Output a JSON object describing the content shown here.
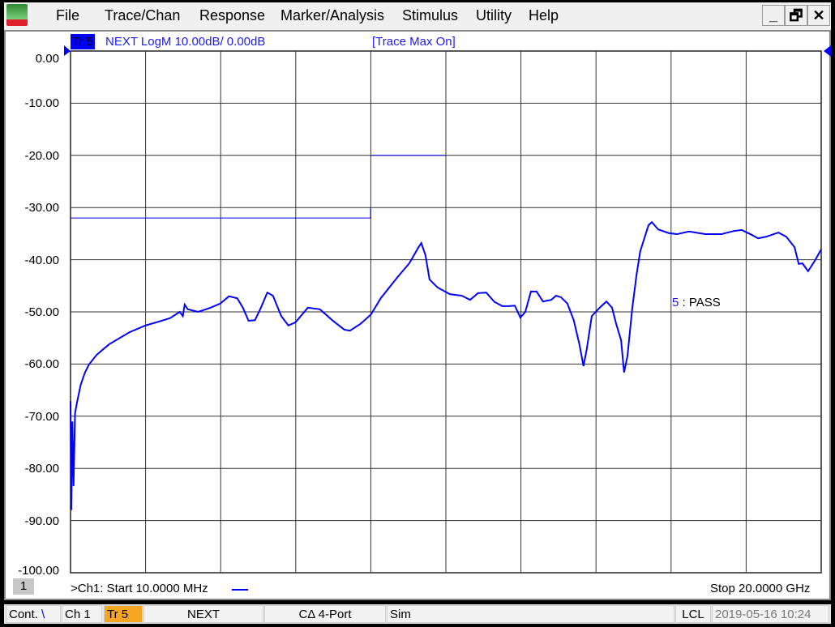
{
  "menu": {
    "items": [
      "File",
      "Trace/Chan",
      "Response",
      "Marker/Analysis",
      "Stimulus",
      "Utility",
      "Help"
    ]
  },
  "window_controls": {
    "minimize": "_",
    "restore": "🗗",
    "close": "✕"
  },
  "trace_header": {
    "trace": "Tr 5",
    "info": "NEXT LogM 10.00dB/  0.00dB",
    "mode": "[Trace Max On]"
  },
  "y_labels": [
    "0.00",
    "-10.00",
    "-20.00",
    "-30.00",
    "-40.00",
    "-50.00",
    "-60.00",
    "-70.00",
    "-80.00",
    "-90.00",
    "-100.00"
  ],
  "limit_test": {
    "num": "5",
    "sep": ":",
    "result": "PASS"
  },
  "footer": {
    "channel_num": "1",
    "start": ">Ch1:  Start  10.0000 MHz",
    "stop": "Stop  20.0000 GHz"
  },
  "status": {
    "cont": "Cont.",
    "ch": "Ch 1",
    "tr": "Tr 5",
    "param": "NEXT",
    "cal": "CΔ 4-Port",
    "sim": "Sim",
    "lcl": "LCL",
    "datetime": "2019-05-16 10:24"
  },
  "colors": {
    "trace": "#0000ff",
    "grid": "#333333",
    "active_trace_bg": "#f5a623"
  },
  "chart_data": {
    "type": "line",
    "xlabel": "",
    "ylabel": "",
    "xlim": [
      0.01,
      20
    ],
    "x_unit": "GHz",
    "ylim": [
      -100,
      0
    ],
    "y_unit": "dB",
    "grid": true,
    "series": [
      {
        "x": [
          0.01,
          0.03,
          0.06,
          0.09,
          0.13,
          0.19,
          0.28,
          0.39,
          0.5,
          0.71,
          1.04,
          1.58,
          2.01,
          2.44,
          2.66,
          2.92,
          3.0,
          3.05,
          3.13,
          3.41,
          3.74,
          4.0,
          4.23,
          4.45,
          4.6,
          4.75,
          4.92,
          5.08,
          5.25,
          5.4,
          5.62,
          5.81,
          6.0,
          6.33,
          6.65,
          6.98,
          7.3,
          7.45,
          7.73,
          8.01,
          8.27,
          8.7,
          9.03,
          9.27,
          9.35,
          9.46,
          9.57,
          9.78,
          10.11,
          10.43,
          10.65,
          10.86,
          11.08,
          11.3,
          11.51,
          11.68,
          11.84,
          11.99,
          12.12,
          12.27,
          12.42,
          12.59,
          12.81,
          12.94,
          13.07,
          13.24,
          13.41,
          13.56,
          13.67,
          13.76,
          13.89,
          14.1,
          14.28,
          14.43,
          14.54,
          14.67,
          14.75,
          14.84,
          14.97,
          15.08,
          15.18,
          15.4,
          15.49,
          15.66,
          15.94,
          16.16,
          16.48,
          16.91,
          17.34,
          17.67,
          17.88,
          18.14,
          18.32,
          18.53,
          18.86,
          19.07,
          19.29,
          19.4,
          19.5,
          19.65,
          19.83,
          20.0
        ],
        "y": [
          -67.1,
          -88.0,
          -71.0,
          -83.4,
          -69.4,
          -67.1,
          -64.0,
          -61.7,
          -60.1,
          -58.2,
          -56.2,
          -53.9,
          -52.6,
          -51.7,
          -51.2,
          -50.0,
          -50.8,
          -48.6,
          -49.5,
          -50.0,
          -49.2,
          -48.4,
          -47.0,
          -47.4,
          -49.2,
          -51.7,
          -51.6,
          -49.2,
          -46.3,
          -46.9,
          -50.8,
          -52.6,
          -52.0,
          -49.2,
          -49.5,
          -51.6,
          -53.4,
          -53.6,
          -52.3,
          -50.5,
          -47.4,
          -43.5,
          -40.7,
          -37.7,
          -36.8,
          -39.1,
          -43.8,
          -45.3,
          -46.6,
          -46.9,
          -47.7,
          -46.4,
          -46.3,
          -48.1,
          -48.9,
          -48.9,
          -48.8,
          -51.1,
          -50.0,
          -46.1,
          -46.1,
          -48.0,
          -47.7,
          -46.9,
          -47.2,
          -48.4,
          -51.6,
          -56.2,
          -60.4,
          -57.0,
          -50.8,
          -49.2,
          -48.0,
          -49.2,
          -52.3,
          -55.4,
          -61.6,
          -58.5,
          -49.2,
          -43.0,
          -38.4,
          -33.4,
          -32.8,
          -34.2,
          -34.9,
          -35.1,
          -34.6,
          -35.1,
          -35.1,
          -34.5,
          -34.3,
          -35.2,
          -35.9,
          -35.6,
          -34.8,
          -35.6,
          -37.6,
          -40.8,
          -40.7,
          -42.2,
          -40.2,
          -38.0
        ]
      }
    ],
    "limit_lines": [
      {
        "x": [
          0.01,
          8.0
        ],
        "y": [
          -32,
          -32
        ]
      },
      {
        "x": [
          8.0,
          10.0
        ],
        "y": [
          -20,
          -20
        ]
      }
    ]
  }
}
